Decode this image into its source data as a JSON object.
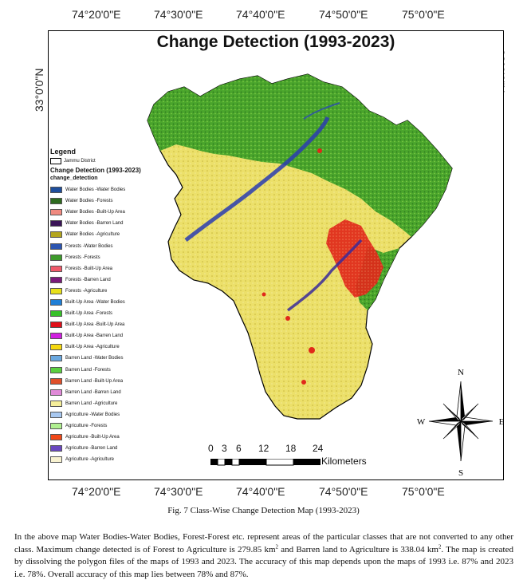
{
  "graticule": {
    "top": [
      "74°20'0\"E",
      "74°30'0\"E",
      "74°40'0\"E",
      "74°50'0\"E",
      "75°0'0\"E"
    ],
    "bottom": [
      "74°20'0\"E",
      "74°30'0\"E",
      "74°40'0\"E",
      "74°50'0\"E",
      "75°0'0\"E"
    ],
    "left": "33°0'0\"N",
    "right": "33°0'0\"N"
  },
  "map": {
    "title": "Change Detection (1993-2023)"
  },
  "legend": {
    "title": "Legend",
    "boundary_label": "Jammu District",
    "subtitle": "Change Detection (1993-2023)",
    "field": "change_detection",
    "items": [
      {
        "label": "Water Bodies -Water Bodies",
        "color": "#1f4e9c"
      },
      {
        "label": "Water Bodies -Forests",
        "color": "#2e6b1f"
      },
      {
        "label": "Water Bodies -Built-Up Area",
        "color": "#f08a80"
      },
      {
        "label": "Water Bodies -Barren Land",
        "color": "#3a1457"
      },
      {
        "label": "Water Bodies -Agriculture",
        "color": "#b3a51f"
      },
      {
        "label": "Forests -Water Bodies",
        "color": "#2c55b0"
      },
      {
        "label": "Forests -Forests",
        "color": "#3d9a2b"
      },
      {
        "label": "Forests -Built-Up Area",
        "color": "#f05a6a"
      },
      {
        "label": "Forests -Barren Land",
        "color": "#7a1a7a"
      },
      {
        "label": "Forests -Agriculture",
        "color": "#e8e01a"
      },
      {
        "label": "Built-Up Area -Water Bodies",
        "color": "#1f7fd6"
      },
      {
        "label": "Built-Up Area -Forests",
        "color": "#37c02a"
      },
      {
        "label": "Built-Up Area -Built-Up Area",
        "color": "#e0101a"
      },
      {
        "label": "Built-Up Area -Barren Land",
        "color": "#d020e0"
      },
      {
        "label": "Built-Up Area -Agriculture",
        "color": "#f5d80f"
      },
      {
        "label": "Barren Land -Water Bodies",
        "color": "#6aa8e0"
      },
      {
        "label": "Barren Land -Forests",
        "color": "#5ad040"
      },
      {
        "label": "Barren Land -Built-Up Area",
        "color": "#e0502a"
      },
      {
        "label": "Barren Land -Barren Land",
        "color": "#e08ad8"
      },
      {
        "label": "Barren Land -Agriculture",
        "color": "#f5ee9a"
      },
      {
        "label": "Agriculture -Water Bodies",
        "color": "#a8c8f0"
      },
      {
        "label": "Agriculture -Forests",
        "color": "#b0f090"
      },
      {
        "label": "Agriculture -Built-Up Area",
        "color": "#f04818"
      },
      {
        "label": "Agriculture -Barren Land",
        "color": "#6a48c0"
      },
      {
        "label": "Agriculture -Agriculture",
        "color": "#f8f2d0"
      }
    ]
  },
  "scalebar": {
    "ticks": [
      "0",
      "3",
      "6",
      "12",
      "18",
      "24"
    ],
    "unit": "Kilometers"
  },
  "north_arrow": {
    "n": "N",
    "s": "S",
    "e": "E",
    "w": "W"
  },
  "caption": "Fig. 7 Class-Wise Change Detection Map (1993-2023)",
  "paragraph": {
    "p1": "In the above map Water Bodies-Water Bodies, Forest-Forest etc. represent areas of the particular classes that are not converted to any other class. Maximum change detected is of Forest to Agriculture is 279.85 km",
    "sup1": "2",
    "p2": " and Barren land to Agriculture is 338.04 km",
    "sup2": "2",
    "p3": ". The map is created by dissolving the polygon files of the maps of 1993 and 2023. The accuracy of this map depends upon the maps of 1993 i.e. 87% and 2023 i.e. 78%. Overall accuracy of this map lies between 78% and 87%."
  }
}
